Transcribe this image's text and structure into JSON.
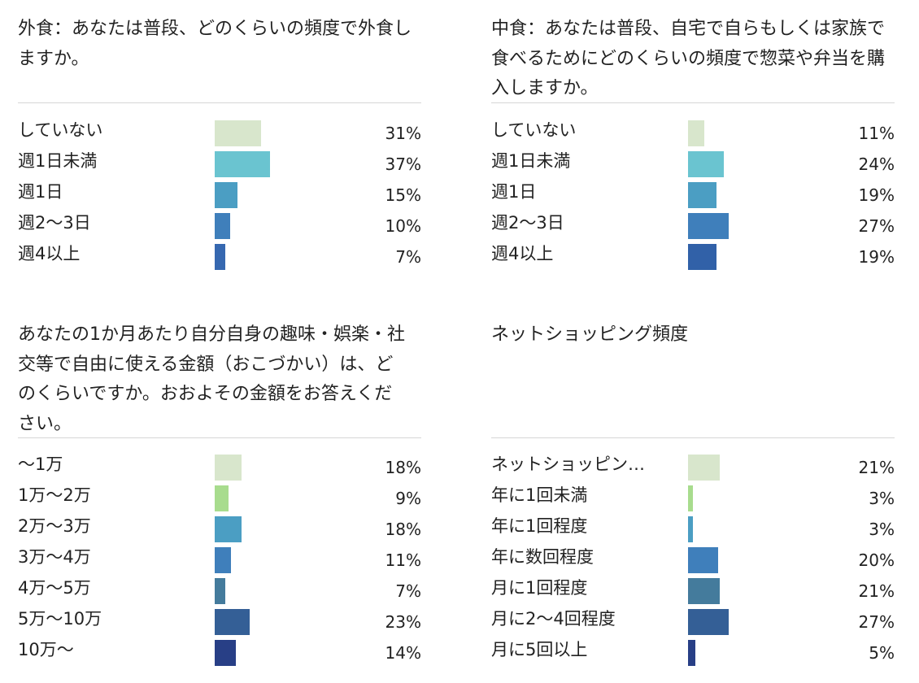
{
  "chart_data": [
    {
      "type": "bar",
      "title": "外食：あなたは普段、どのくらいの頻度で外食しますか。",
      "categories": [
        "していない",
        "週1日未満",
        "週1日",
        "週2〜3日",
        "週4以上"
      ],
      "values": [
        31,
        37,
        15,
        10,
        7
      ],
      "value_labels": [
        "31%",
        "37%",
        "15%",
        "10%",
        "7%"
      ],
      "colors": [
        "#d8e6cc",
        "#6ac4d0",
        "#4b9ec3",
        "#3f7fbb",
        "#3668b0"
      ],
      "value_unit": "%",
      "orientation": "horizontal"
    },
    {
      "type": "bar",
      "title": "中食：あなたは普段、自宅で自らもしくは家族で食べるためにどのくらいの頻度で惣菜や弁当を購入しますか。",
      "categories": [
        "していない",
        "週1日未満",
        "週1日",
        "週2〜3日",
        "週4以上"
      ],
      "values": [
        11,
        24,
        19,
        27,
        19
      ],
      "value_labels": [
        "11%",
        "24%",
        "19%",
        "27%",
        "19%"
      ],
      "colors": [
        "#d8e6cc",
        "#6ac4d0",
        "#4b9ec3",
        "#3f7fbb",
        "#3161a8"
      ],
      "value_unit": "%",
      "orientation": "horizontal"
    },
    {
      "type": "bar",
      "title": "あなたの1か月あたり自分自身の趣味・娯楽・社交等で自由に使える金額（おこづかい）は、どのくらいですか。おおよその金額をお答えください。",
      "categories": [
        "〜1万",
        "1万〜2万",
        "2万〜3万",
        "3万〜4万",
        "4万〜5万",
        "5万〜10万",
        "10万〜"
      ],
      "values": [
        18,
        9,
        18,
        11,
        7,
        23,
        14
      ],
      "value_labels": [
        "18%",
        "9%",
        "18%",
        "11%",
        "7%",
        "23%",
        "14%"
      ],
      "colors": [
        "#d8e6cc",
        "#a8dc8e",
        "#4b9ec3",
        "#3f7fbb",
        "#447b9c",
        "#345f96",
        "#283f86"
      ],
      "value_unit": "%",
      "orientation": "horizontal"
    },
    {
      "type": "bar",
      "title": "ネットショッピング頻度",
      "categories": [
        "ネットショッピン…",
        "年に1回未満",
        "年に1回程度",
        "年に数回程度",
        "月に1回程度",
        "月に2〜4回程度",
        "月に5回以上"
      ],
      "values": [
        21,
        3,
        3,
        20,
        21,
        27,
        5
      ],
      "value_labels": [
        "21%",
        "3%",
        "3%",
        "20%",
        "21%",
        "27%",
        "5%"
      ],
      "colors": [
        "#d8e6cc",
        "#a8dc8e",
        "#4b9ec3",
        "#3f7fbb",
        "#447b9c",
        "#345f96",
        "#283f86"
      ],
      "value_unit": "%",
      "orientation": "horizontal"
    }
  ]
}
